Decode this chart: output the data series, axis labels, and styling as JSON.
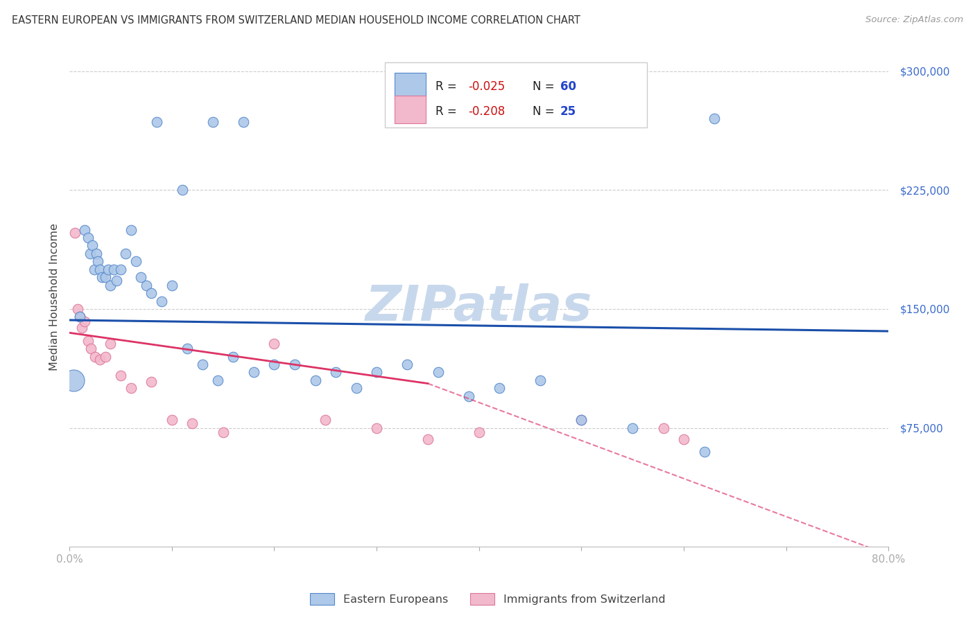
{
  "title": "EASTERN EUROPEAN VS IMMIGRANTS FROM SWITZERLAND MEDIAN HOUSEHOLD INCOME CORRELATION CHART",
  "source": "Source: ZipAtlas.com",
  "ylabel": "Median Household Income",
  "yticks": [
    0,
    75000,
    150000,
    225000,
    300000
  ],
  "ytick_labels": [
    "",
    "$75,000",
    "$150,000",
    "$225,000",
    "$300,000"
  ],
  "xmin": 0.0,
  "xmax": 80.0,
  "ymin": 0,
  "ymax": 315000,
  "R_blue": -0.025,
  "N_blue": 60,
  "R_pink": -0.208,
  "N_pink": 25,
  "legend_label_blue": "Eastern Europeans",
  "legend_label_pink": "Immigrants from Switzerland",
  "blue_color": "#adc8e8",
  "blue_edge": "#5588cc",
  "pink_color": "#f2b8cc",
  "pink_edge": "#dd7799",
  "trend_blue_color": "#1a4faa",
  "trend_pink_color": "#dd3366",
  "background_color": "#ffffff",
  "blue_scatter_x": [
    1.0,
    1.5,
    1.8,
    2.0,
    2.2,
    2.4,
    2.6,
    2.8,
    3.0,
    3.2,
    3.5,
    3.8,
    4.0,
    4.3,
    4.6,
    5.0,
    5.5,
    6.0,
    6.5,
    7.0,
    7.5,
    8.0,
    9.0,
    10.0,
    11.5,
    13.0,
    14.5,
    16.0,
    18.0,
    20.0,
    22.0,
    24.0,
    26.0,
    28.0,
    30.0,
    33.0,
    36.0,
    39.0,
    42.0,
    46.0,
    50.0,
    55.0,
    62.0,
    8.5,
    14.0,
    17.0,
    63.0,
    11.0
  ],
  "blue_scatter_y": [
    145000,
    200000,
    195000,
    185000,
    190000,
    175000,
    185000,
    180000,
    175000,
    170000,
    170000,
    175000,
    165000,
    175000,
    168000,
    175000,
    185000,
    200000,
    180000,
    170000,
    165000,
    160000,
    155000,
    165000,
    125000,
    115000,
    105000,
    120000,
    110000,
    115000,
    115000,
    105000,
    110000,
    100000,
    110000,
    115000,
    110000,
    95000,
    100000,
    105000,
    80000,
    75000,
    60000,
    268000,
    268000,
    268000,
    270000,
    225000
  ],
  "pink_scatter_x": [
    0.5,
    0.8,
    1.0,
    1.2,
    1.5,
    1.8,
    2.1,
    2.5,
    3.0,
    3.5,
    4.0,
    5.0,
    6.0,
    8.0,
    10.0,
    12.0,
    15.0,
    20.0,
    25.0,
    30.0,
    35.0,
    40.0,
    50.0,
    58.0,
    60.0
  ],
  "pink_scatter_y": [
    198000,
    150000,
    145000,
    138000,
    142000,
    130000,
    125000,
    120000,
    118000,
    120000,
    128000,
    108000,
    100000,
    104000,
    80000,
    78000,
    72000,
    128000,
    80000,
    75000,
    68000,
    72000,
    80000,
    75000,
    68000
  ],
  "large_blue_dot_x": 0.4,
  "large_blue_dot_y": 105000,
  "blue_trend_y0": 143000,
  "blue_trend_y1": 136000,
  "pink_trend_y0": 135000,
  "pink_trend_y_at35": 103000,
  "pink_trend_yend": -5000,
  "pink_solid_end_x": 35.0,
  "marker_size": 110,
  "large_marker_size": 500,
  "zipatlas_text": "ZIPatlas",
  "zipatlas_color": "#c8d8ec",
  "zipatlas_x": 0.5,
  "zipatlas_y": 0.48
}
